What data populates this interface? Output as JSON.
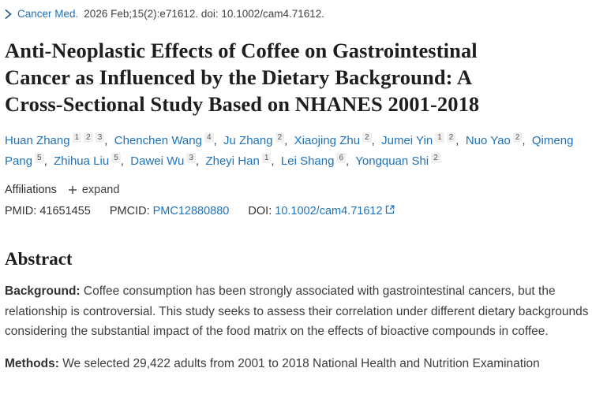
{
  "journal_bar": {
    "journal": "Cancer Med.",
    "citation": "2026 Feb;15(2):e71612. doi: 10.1002/cam4.71612."
  },
  "title_lines": [
    "Anti-Neoplastic Effects of Coffee on Gastrointestinal",
    "Cancer as Influenced by the Dietary Background: A",
    "Cross-Sectional Study Based on NHANES 2001-2018"
  ],
  "title_full": "Anti-Neoplastic Effects of Coffee on Gastrointestinal Cancer as Influenced by the Dietary Background: A Cross-Sectional Study Based on NHANES 2001-2018",
  "authors": [
    {
      "name": "Huan Zhang",
      "sups": [
        "1",
        "2",
        "3"
      ]
    },
    {
      "name": "Chenchen Wang",
      "sups": [
        "4"
      ]
    },
    {
      "name": "Ju Zhang",
      "sups": [
        "2"
      ]
    },
    {
      "name": "Xiaojing Zhu",
      "sups": [
        "2"
      ]
    },
    {
      "name": "Jumei Yin",
      "sups": [
        "1",
        "2"
      ]
    },
    {
      "name": "Nuo Yao",
      "sups": [
        "2"
      ]
    },
    {
      "name": "Qimeng Pang",
      "sups": [
        "5"
      ]
    },
    {
      "name": "Zhihua Liu",
      "sups": [
        "5"
      ]
    },
    {
      "name": "Dawei Wu",
      "sups": [
        "3"
      ]
    },
    {
      "name": "Zheyi Han",
      "sups": [
        "1"
      ]
    },
    {
      "name": "Lei Shang",
      "sups": [
        "6"
      ]
    },
    {
      "name": "Yongquan Shi",
      "sups": [
        "2"
      ]
    }
  ],
  "affiliations": {
    "label": "Affiliations",
    "expand_label": "expand"
  },
  "ids": {
    "pmid_label": "PMID:",
    "pmid_value": "41651455",
    "pmcid_label": "PMCID:",
    "pmcid_value": "PMC12880880",
    "doi_label": "DOI:",
    "doi_value": "10.1002/cam4.71612"
  },
  "abstract": {
    "heading": "Abstract",
    "sections": [
      {
        "label": "Background:",
        "text": "Coffee consumption has been strongly associated with gastrointestinal cancers, but the relationship is controversial. This study seeks to assess their correlation under different dietary backgrounds considering the substantial impact of the food matrix on the effects of bioactive compounds in coffee."
      },
      {
        "label": "Methods:",
        "text": "We selected 29,422 adults from 2001 to 2018 National Health and Nutrition Examination"
      }
    ]
  },
  "icons": {
    "chevron": "chevron-right-icon",
    "plus": "plus-icon",
    "external_link": "external-link-icon"
  },
  "colors": {
    "link_blue": "#1f72b8",
    "chevron_navy": "#20558a",
    "title_text": "#1d1e1f",
    "body_text": "#3d3d3d",
    "sup_bg": "#f0f0f0",
    "sup_text": "#595959"
  }
}
